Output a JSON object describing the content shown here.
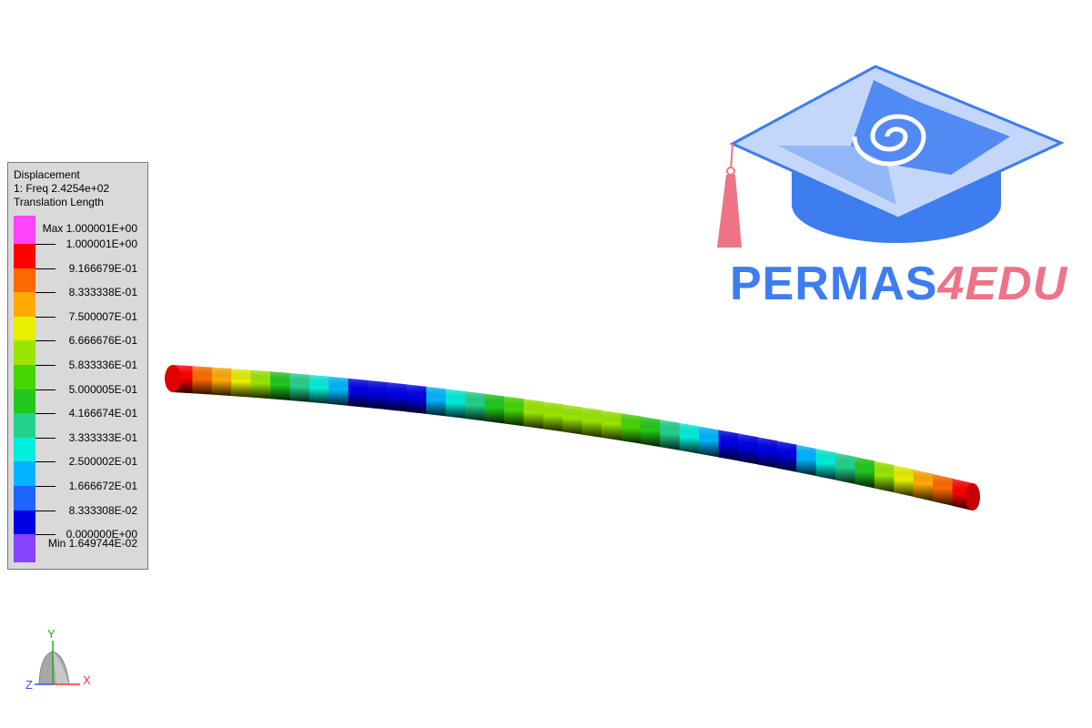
{
  "legend": {
    "quantity": "Displacement",
    "step": "1: Freq 2.4254e+02",
    "component": "Translation Length",
    "max_label": "Max 1.000001E+00",
    "min_label": "Min 1.649744E-02",
    "tick_labels": [
      "1.000001E+00",
      "9.166679E-01",
      "8.333338E-01",
      "7.500007E-01",
      "6.666676E-01",
      "5.833336E-01",
      "5.000005E-01",
      "4.166674E-01",
      "3.333333E-01",
      "2.500002E-01",
      "1.666672E-01",
      "8.333308E-02",
      "0.000000E+00"
    ],
    "band_colors": [
      "#ff44ff",
      "#ff0000",
      "#ff6a00",
      "#ffaa00",
      "#e6f000",
      "#9ae600",
      "#44d600",
      "#22c81e",
      "#22d28c",
      "#00eedc",
      "#00b4ff",
      "#1e64ff",
      "#0000e6",
      "#8844ff"
    ],
    "band_layout": [
      "max",
      "r",
      "r",
      "r",
      "r",
      "r",
      "r",
      "r",
      "r",
      "r",
      "r",
      "r",
      "r",
      "min"
    ]
  },
  "logo": {
    "main": "PERMAS",
    "sub": "4EDU",
    "main_color": "#3d7df0",
    "sub_color": "#ef7386",
    "icon": "graduation-cap-icon"
  },
  "triad": {
    "x_label": "X",
    "y_label": "Y",
    "z_label": "Z",
    "x_color": "#ff3333",
    "y_color": "#22aa22",
    "z_color": "#3355ff"
  },
  "beam": {
    "mode_shape_values": [
      1.0,
      0.95,
      0.88,
      0.78,
      0.66,
      0.55,
      0.44,
      0.33,
      0.22,
      0.12,
      0.04,
      0.0,
      0.04,
      0.12,
      0.22,
      0.33,
      0.44,
      0.53,
      0.6,
      0.64,
      0.66,
      0.66,
      0.64,
      0.6,
      0.53,
      0.44,
      0.33,
      0.22,
      0.12,
      0.04,
      0.0,
      0.04,
      0.12,
      0.22,
      0.33,
      0.44,
      0.55,
      0.66,
      0.78,
      0.88,
      0.95,
      1.0
    ]
  }
}
